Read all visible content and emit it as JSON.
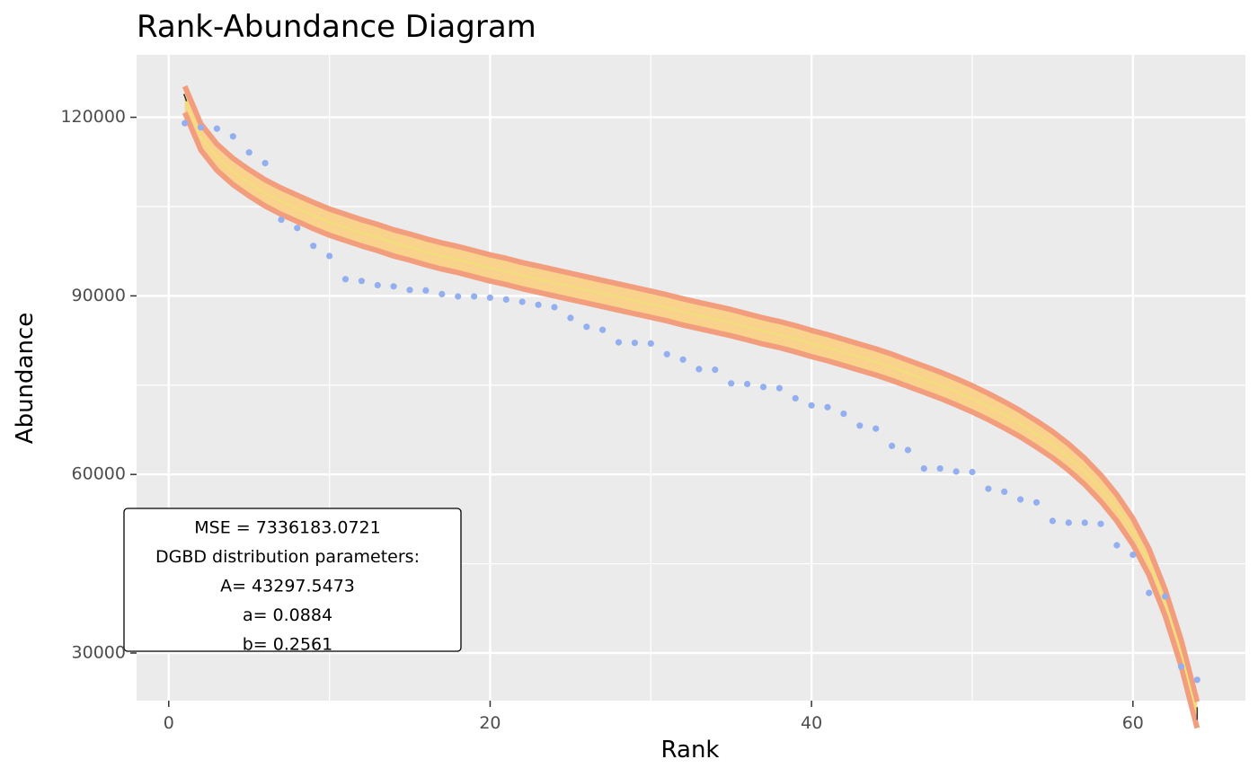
{
  "chart_data": {
    "type": "scatter",
    "title": "Rank-Abundance Diagram",
    "xlabel": "Rank",
    "ylabel": "Abundance",
    "xlim": [
      -2,
      67
    ],
    "ylim": [
      22000,
      130500
    ],
    "x_ticks": [
      0,
      20,
      40,
      60
    ],
    "y_ticks": [
      30000,
      60000,
      90000,
      120000
    ],
    "grid": true,
    "colors": {
      "panel": "#ebebeb",
      "grid": "#ffffff",
      "points": "#93aff0",
      "band_fill": "#f9d38c",
      "band_outline": "#f29e7e",
      "fit_line": "#f0e07a",
      "fit_edge": "#333333"
    },
    "observed": {
      "x": [
        1,
        2,
        3,
        4,
        5,
        6,
        7,
        8,
        9,
        10,
        11,
        12,
        13,
        14,
        15,
        16,
        17,
        18,
        19,
        20,
        21,
        22,
        23,
        24,
        25,
        26,
        27,
        28,
        29,
        30,
        31,
        32,
        33,
        34,
        35,
        36,
        37,
        38,
        39,
        40,
        41,
        42,
        43,
        44,
        45,
        46,
        47,
        48,
        49,
        50,
        51,
        52,
        53,
        54,
        55,
        56,
        57,
        58,
        59,
        60,
        61,
        62,
        63,
        64
      ],
      "y": [
        119000,
        118300,
        118100,
        116800,
        114100,
        112300,
        102800,
        101400,
        98400,
        96700,
        92800,
        92500,
        91800,
        91600,
        91000,
        90900,
        90300,
        89900,
        89900,
        89700,
        89400,
        89000,
        88500,
        88100,
        86300,
        84800,
        84300,
        82200,
        82100,
        82000,
        80200,
        79300,
        77700,
        77600,
        75300,
        75200,
        74700,
        74500,
        72800,
        71600,
        71300,
        70200,
        68200,
        67700,
        64800,
        64100,
        61000,
        61000,
        60500,
        60400,
        57600,
        57100,
        55800,
        55300,
        52200,
        51900,
        51900,
        51700,
        48100,
        46500,
        40100,
        39500,
        27700,
        25500
      ]
    },
    "fitted": {
      "x": [
        1,
        2,
        3,
        4,
        5,
        6,
        7,
        8,
        9,
        10,
        11,
        12,
        13,
        14,
        15,
        16,
        17,
        18,
        19,
        20,
        21,
        22,
        23,
        24,
        25,
        26,
        27,
        28,
        29,
        30,
        31,
        32,
        33,
        34,
        35,
        36,
        37,
        38,
        39,
        40,
        41,
        42,
        43,
        44,
        45,
        46,
        47,
        48,
        49,
        50,
        51,
        52,
        53,
        54,
        55,
        56,
        57,
        58,
        59,
        60,
        61,
        62,
        63,
        64
      ],
      "y": [
        123000,
        116700,
        113300,
        110900,
        109000,
        107300,
        105900,
        104700,
        103500,
        102400,
        101500,
        100600,
        99800,
        98900,
        98200,
        97400,
        96700,
        96100,
        95400,
        94700,
        94100,
        93400,
        92800,
        92200,
        91600,
        91000,
        90400,
        89800,
        89200,
        88600,
        88000,
        87300,
        86700,
        86100,
        85500,
        84800,
        84100,
        83500,
        82800,
        82000,
        81300,
        80500,
        79700,
        78900,
        78000,
        77000,
        76000,
        75000,
        73900,
        72700,
        71400,
        70000,
        68500,
        66800,
        65000,
        62900,
        60500,
        57700,
        54400,
        50400,
        45300,
        38500,
        30000,
        19600
      ],
      "band_half_width": 2200
    },
    "annotation": {
      "lines": [
        "MSE = 7336183.0721",
        "DGBD distribution parameters:",
        "A= 43297.5473",
        "a= 0.0884",
        "b= 0.2561"
      ]
    }
  }
}
